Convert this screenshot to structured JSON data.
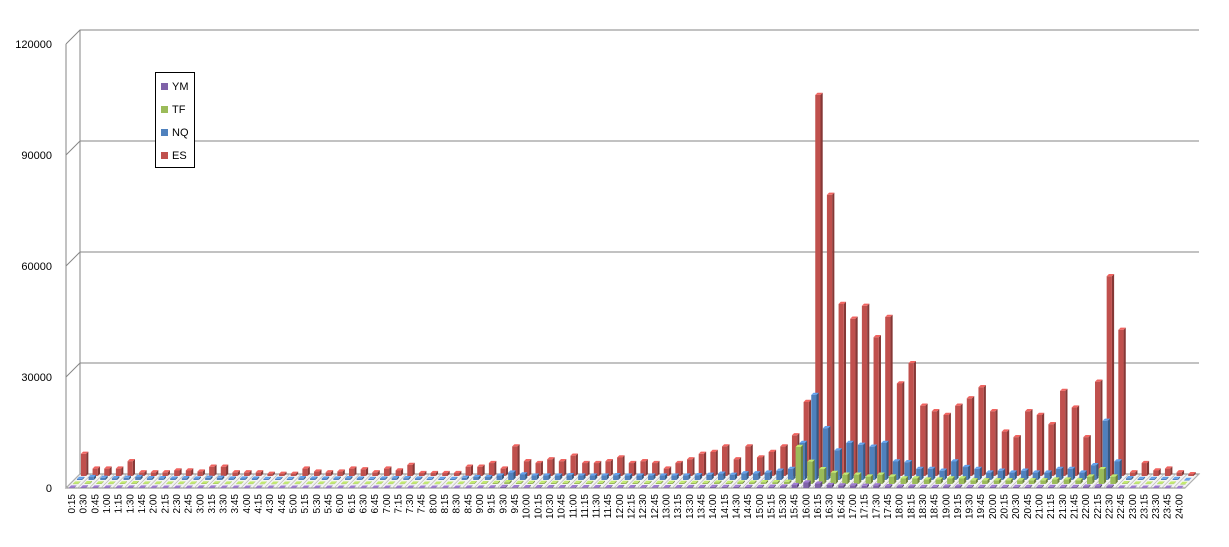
{
  "chart_data": {
    "type": "bar",
    "title": "",
    "xlabel": "",
    "ylabel": "",
    "ylim": [
      0,
      120000
    ],
    "yticks": [
      "0",
      "30000",
      "60000",
      "90000",
      "120000"
    ],
    "grid": true,
    "legend_position": "top-left",
    "categories": [
      "0:15",
      "0:30",
      "0:45",
      "1:00",
      "1:15",
      "1:30",
      "1:45",
      "2:00",
      "2:15",
      "2:30",
      "2:45",
      "3:00",
      "3:15",
      "3:30",
      "3:45",
      "4:00",
      "4:15",
      "4:30",
      "4:45",
      "5:00",
      "5:15",
      "5:30",
      "5:45",
      "6:00",
      "6:15",
      "6:30",
      "6:45",
      "7:00",
      "7:15",
      "7:30",
      "7:45",
      "8:00",
      "8:15",
      "8:30",
      "8:45",
      "9:00",
      "9:15",
      "9:30",
      "9:45",
      "10:00",
      "10:15",
      "10:30",
      "10:45",
      "11:00",
      "11:15",
      "11:30",
      "11:45",
      "12:00",
      "12:15",
      "12:30",
      "12:45",
      "13:00",
      "13:15",
      "13:30",
      "13:45",
      "14:00",
      "14:15",
      "14:30",
      "14:45",
      "15:00",
      "15:15",
      "15:30",
      "15:45",
      "16:00",
      "16:15",
      "16:30",
      "16:45",
      "17:00",
      "17:15",
      "17:30",
      "17:45",
      "18:00",
      "18:15",
      "18:30",
      "18:45",
      "19:00",
      "19:15",
      "19:30",
      "19:45",
      "20:00",
      "20:15",
      "20:30",
      "20:45",
      "21:00",
      "21:15",
      "21:30",
      "21:45",
      "22:00",
      "22:15",
      "22:30",
      "22:45",
      "23:00",
      "23:15",
      "23:30",
      "23:45",
      "24:00"
    ],
    "series": [
      {
        "name": "YM",
        "color": "#7f62a8",
        "values": [
          100,
          150,
          120,
          100,
          100,
          120,
          100,
          80,
          80,
          80,
          80,
          100,
          100,
          80,
          80,
          80,
          80,
          80,
          80,
          80,
          80,
          80,
          80,
          80,
          80,
          80,
          80,
          80,
          80,
          80,
          80,
          80,
          80,
          80,
          100,
          100,
          150,
          300,
          200,
          200,
          200,
          200,
          200,
          200,
          200,
          200,
          200,
          200,
          200,
          200,
          200,
          200,
          200,
          250,
          250,
          300,
          300,
          300,
          300,
          300,
          350,
          400,
          800,
          1500,
          1200,
          800,
          700,
          700,
          600,
          700,
          500,
          400,
          400,
          300,
          300,
          400,
          400,
          300,
          300,
          300,
          300,
          300,
          300,
          300,
          300,
          300,
          300,
          400,
          500,
          400,
          100,
          80,
          80,
          80,
          80,
          0
        ]
      },
      {
        "name": "TF",
        "color": "#9bbb59",
        "values": [
          100,
          200,
          150,
          100,
          150,
          200,
          100,
          100,
          100,
          100,
          100,
          150,
          150,
          100,
          100,
          100,
          80,
          80,
          80,
          100,
          100,
          100,
          100,
          100,
          100,
          100,
          100,
          100,
          100,
          100,
          80,
          80,
          80,
          100,
          200,
          200,
          300,
          500,
          300,
          300,
          300,
          300,
          300,
          300,
          300,
          300,
          300,
          300,
          300,
          300,
          300,
          300,
          300,
          300,
          300,
          400,
          300,
          400,
          400,
          500,
          500,
          600,
          10000,
          6000,
          4000,
          3000,
          2500,
          2500,
          2000,
          2500,
          2000,
          1500,
          1500,
          1200,
          1200,
          1500,
          1500,
          1000,
          1000,
          1000,
          1000,
          1000,
          1000,
          1000,
          1200,
          1200,
          1000,
          2000,
          4000,
          2000,
          200,
          100,
          100,
          100,
          100,
          0
        ]
      },
      {
        "name": "NQ",
        "color": "#4f81bd",
        "values": [
          300,
          800,
          600,
          500,
          600,
          800,
          500,
          500,
          400,
          500,
          400,
          600,
          600,
          400,
          400,
          400,
          300,
          300,
          300,
          500,
          400,
          400,
          400,
          500,
          400,
          300,
          400,
          500,
          500,
          400,
          300,
          300,
          300,
          600,
          800,
          800,
          1200,
          2000,
          1500,
          1200,
          1200,
          1200,
          1300,
          1200,
          1200,
          1200,
          1300,
          1200,
          1200,
          1200,
          1200,
          1200,
          1200,
          1300,
          1400,
          1700,
          1400,
          1800,
          1800,
          2000,
          2500,
          3000,
          10000,
          23000,
          14000,
          8000,
          10000,
          9500,
          9000,
          10000,
          5000,
          4800,
          3000,
          3000,
          2500,
          5000,
          3500,
          3000,
          2000,
          2500,
          2000,
          2500,
          2000,
          2000,
          3000,
          3000,
          2000,
          4000,
          16000,
          5000,
          500,
          300,
          300,
          300,
          300,
          0
        ]
      },
      {
        "name": "ES",
        "color": "#c0504d",
        "values": [
          6000,
          2000,
          2000,
          2000,
          4000,
          1000,
          1000,
          1000,
          1500,
          1500,
          1200,
          2500,
          2500,
          1000,
          1000,
          1000,
          600,
          600,
          600,
          2000,
          1200,
          1000,
          1200,
          2000,
          1800,
          1000,
          2000,
          1500,
          3000,
          800,
          800,
          800,
          800,
          2500,
          2500,
          3500,
          2000,
          8000,
          4000,
          3500,
          4500,
          4000,
          5500,
          3500,
          3500,
          4000,
          5000,
          3500,
          4000,
          3500,
          2000,
          3500,
          4500,
          6000,
          6500,
          8000,
          4500,
          8000,
          5000,
          6500,
          8000,
          11000,
          20000,
          103000,
          76000,
          46500,
          42500,
          46000,
          37500,
          43000,
          25000,
          30500,
          19000,
          17500,
          16500,
          19000,
          21000,
          24000,
          17500,
          12000,
          10500,
          17500,
          16500,
          14000,
          23000,
          18500,
          10500,
          25500,
          54000,
          39500,
          1000,
          3500,
          1500,
          2000,
          1000,
          500
        ]
      }
    ]
  }
}
